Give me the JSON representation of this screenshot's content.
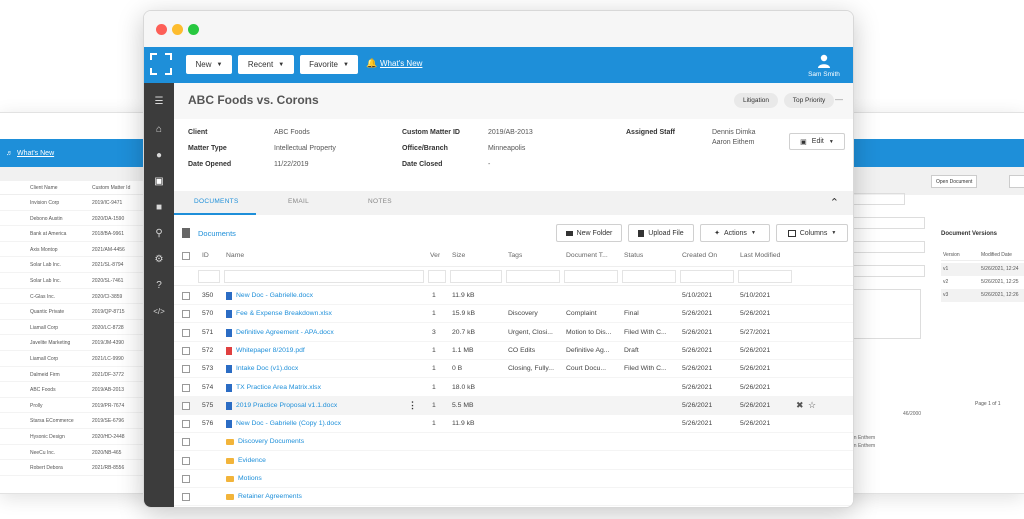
{
  "background_left": {
    "whats_new": "What's New",
    "col_headers": [
      "Client Name",
      "Custom Matter Id"
    ],
    "rows": [
      [
        "Invision Corp",
        "2019/IC-9471"
      ],
      [
        "Debono Austin",
        "2020/DA-1590"
      ],
      [
        "Bank at America",
        "2018/BA-9961"
      ],
      [
        "Axis Montop",
        "2021/AM-4456"
      ],
      [
        "Solar Lab Inc.",
        "2021/SL-8794"
      ],
      [
        "Solar Lab Inc.",
        "2020/SL-7461"
      ],
      [
        "C-Glas Inc.",
        "2020/CI-3859"
      ],
      [
        "Quantic Private",
        "2019/QP-8715"
      ],
      [
        "Liamall Corp",
        "2020/LC-8728"
      ],
      [
        "Javelite Marketing",
        "2019/JM-4390"
      ],
      [
        "Liamall Corp",
        "2021/LC-9990"
      ],
      [
        "Dalmeid Firm",
        "2021/DF-3772"
      ],
      [
        "ABC Foods",
        "2019/AB-2013"
      ],
      [
        "Prolly",
        "2019/PR-7674"
      ],
      [
        "Starsa ECommerce",
        "2019/SE-6796"
      ],
      [
        "Hysonic Design",
        "2020/HD-2448"
      ],
      [
        "NeeCu Inc.",
        "2020/NB-465"
      ],
      [
        "Robert Debora",
        "2021/RB-8556"
      ]
    ]
  },
  "background_right": {
    "whats_new": "What's New",
    "open_document": "Open Document",
    "versions_title": "Document Versions",
    "version_col": "Version",
    "modified_col": "Modified Date",
    "versions": [
      [
        "v1",
        "5/26/2021, 12:24"
      ],
      [
        "v2",
        "5/26/2021, 12:25"
      ],
      [
        "v3",
        "5/26/2021, 12:26"
      ]
    ],
    "pager": "Page 1 of 1",
    "count": "46/2000",
    "staff_a": "on Enthem",
    "staff_b": "on Enthem"
  },
  "toolbar": {
    "new_label": "New",
    "recent_label": "Recent",
    "favorite_label": "Favorite",
    "whats_new": "What's New",
    "user_name": "Sam Smith"
  },
  "matter": {
    "title": "ABC Foods vs. Corons",
    "tags": [
      "Litigation",
      "Top Priority"
    ],
    "fields": {
      "client_label": "Client",
      "client_value": "ABC Foods",
      "matter_type_label": "Matter Type",
      "matter_type_value": "Intellectual Property",
      "date_opened_label": "Date Opened",
      "date_opened_value": "11/22/2019",
      "custom_id_label": "Custom Matter ID",
      "custom_id_value": "2019/AB-2013",
      "office_label": "Office/Branch",
      "office_value": "Minneapolis",
      "date_closed_label": "Date Closed",
      "date_closed_value": "-",
      "assigned_label": "Assigned Staff",
      "assigned_1": "Dennis Dimka",
      "assigned_2": "Aaron Eithem"
    },
    "edit_label": "Edit"
  },
  "tabs": [
    "DOCUMENTS",
    "EMAIL",
    "NOTES"
  ],
  "documents": {
    "title": "Documents",
    "new_folder": "New Folder",
    "upload_file": "Upload File",
    "actions": "Actions",
    "columns": "Columns",
    "headers": [
      "ID",
      "Name",
      "Ver",
      "Size",
      "Tags",
      "Document T...",
      "Status",
      "Created On",
      "Last Modified"
    ],
    "rows": [
      {
        "id": "350",
        "name": "New Doc - Gabrielle.docx",
        "ver": "1",
        "size": "11.9 kB",
        "tags": "",
        "doctype": "",
        "status": "",
        "created": "5/10/2021",
        "modified": "5/10/2021",
        "icon": "doc"
      },
      {
        "id": "570",
        "name": "Fee & Expense Breakdown.xlsx",
        "ver": "1",
        "size": "15.9 kB",
        "tags": "Discovery",
        "doctype": "Complaint",
        "status": "Final",
        "created": "5/26/2021",
        "modified": "5/26/2021",
        "icon": "xls"
      },
      {
        "id": "571",
        "name": "Definitive Agreement - APA.docx",
        "ver": "3",
        "size": "20.7 kB",
        "tags": "Urgent, Closi...",
        "doctype": "Motion to Dis...",
        "status": "Filed With C...",
        "created": "5/26/2021",
        "modified": "5/27/2021",
        "icon": "doc"
      },
      {
        "id": "572",
        "name": "Whitepaper 8/2019.pdf",
        "ver": "1",
        "size": "1.1 MB",
        "tags": "CO Edits",
        "doctype": "Definitive Ag...",
        "status": "Draft",
        "created": "5/26/2021",
        "modified": "5/26/2021",
        "icon": "pdf"
      },
      {
        "id": "573",
        "name": "Intake Doc (v1).docx",
        "ver": "1",
        "size": "0 B",
        "tags": "Closing, Fully...",
        "doctype": "Court Docu...",
        "status": "Filed With C...",
        "created": "5/26/2021",
        "modified": "5/26/2021",
        "icon": "doc"
      },
      {
        "id": "574",
        "name": "TX Practice Area Matrix.xlsx",
        "ver": "1",
        "size": "18.0 kB",
        "tags": "",
        "doctype": "",
        "status": "",
        "created": "5/26/2021",
        "modified": "5/26/2021",
        "icon": "xls"
      },
      {
        "id": "575",
        "name": "2019 Practice Proposal v1.1.docx",
        "ver": "1",
        "size": "5.5 MB",
        "tags": "",
        "doctype": "",
        "status": "",
        "created": "5/26/2021",
        "modified": "5/26/2021",
        "icon": "doc"
      },
      {
        "id": "576",
        "name": "New Doc - Gabrielle (Copy 1).docx",
        "ver": "1",
        "size": "11.9 kB",
        "tags": "",
        "doctype": "",
        "status": "",
        "created": "5/26/2021",
        "modified": "5/26/2021",
        "icon": "doc"
      }
    ],
    "folders": [
      "Discovery Documents",
      "Evidence",
      "Motions",
      "Retainer Agreements"
    ]
  },
  "colors": {
    "brand_blue": "#1e8fd9",
    "sidebar": "#3c3c3c",
    "folder": "#f2b43a",
    "pdf": "#e04040"
  }
}
